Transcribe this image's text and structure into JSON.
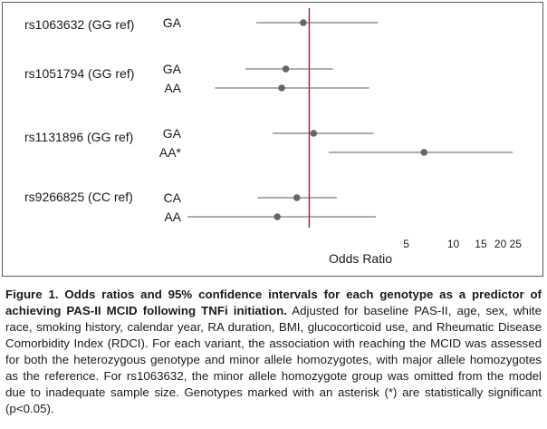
{
  "chart_data": {
    "type": "forest",
    "title": "",
    "xlabel": "Odds Ratio",
    "ylabel": "",
    "x_scale": "log",
    "xlim": [
      0.2,
      30
    ],
    "reference_line": 1.2,
    "x_ticks": [
      5,
      10,
      15,
      20,
      25
    ],
    "x_tick_labels": [
      "5",
      "10",
      "15",
      "20",
      "25"
    ],
    "grid": false,
    "groups": [
      {
        "snp": "rs1063632 (GG ref)",
        "rows": [
          {
            "genotype": "GA",
            "or": 1.1,
            "ci": [
              0.55,
              3.3
            ]
          }
        ]
      },
      {
        "snp": "rs1051794 (GG ref)",
        "rows": [
          {
            "genotype": "GA",
            "or": 0.85,
            "ci": [
              0.47,
              1.7
            ]
          },
          {
            "genotype": "AA",
            "or": 0.8,
            "ci": [
              0.3,
              2.9
            ]
          }
        ]
      },
      {
        "snp": "rs1131896 (GG ref)",
        "rows": [
          {
            "genotype": "GA",
            "or": 1.28,
            "ci": [
              0.7,
              3.1
            ]
          },
          {
            "genotype": "AA*",
            "or": 6.5,
            "ci": [
              1.6,
              24
            ]
          }
        ]
      },
      {
        "snp": "rs9266825 (CC ref)",
        "rows": [
          {
            "genotype": "CA",
            "or": 1.0,
            "ci": [
              0.56,
              1.8
            ]
          },
          {
            "genotype": "AA",
            "or": 0.75,
            "ci": [
              0.2,
              3.2
            ]
          }
        ]
      }
    ]
  },
  "caption": {
    "lead": "Figure 1. Odds ratios and 95% confidence intervals for each genotype as a predictor of achieving PAS-II MCID following TNFi initiation.",
    "body": " Adjusted for baseline PAS-II, age, sex, white race, smoking history, calendar year, RA duration, BMI, glucocorticoid use, and Rheumatic Disease Comorbidity Index (RDCI). For each variant, the association with reaching the MCID was assessed for both the heterozygous genotype and minor allele homozygotes, with major allele homozygotes as the reference. For rs1063632, the minor allele homozygote group was omitted from the model due to inadequate sample size. Genotypes marked with an asterisk (*) are statistically significant (p<0.05)."
  },
  "colors": {
    "reference_line": "#8c1a5e",
    "ci_line": "#5c5c5c",
    "point": "#666666",
    "text": "#1a1a1a"
  }
}
